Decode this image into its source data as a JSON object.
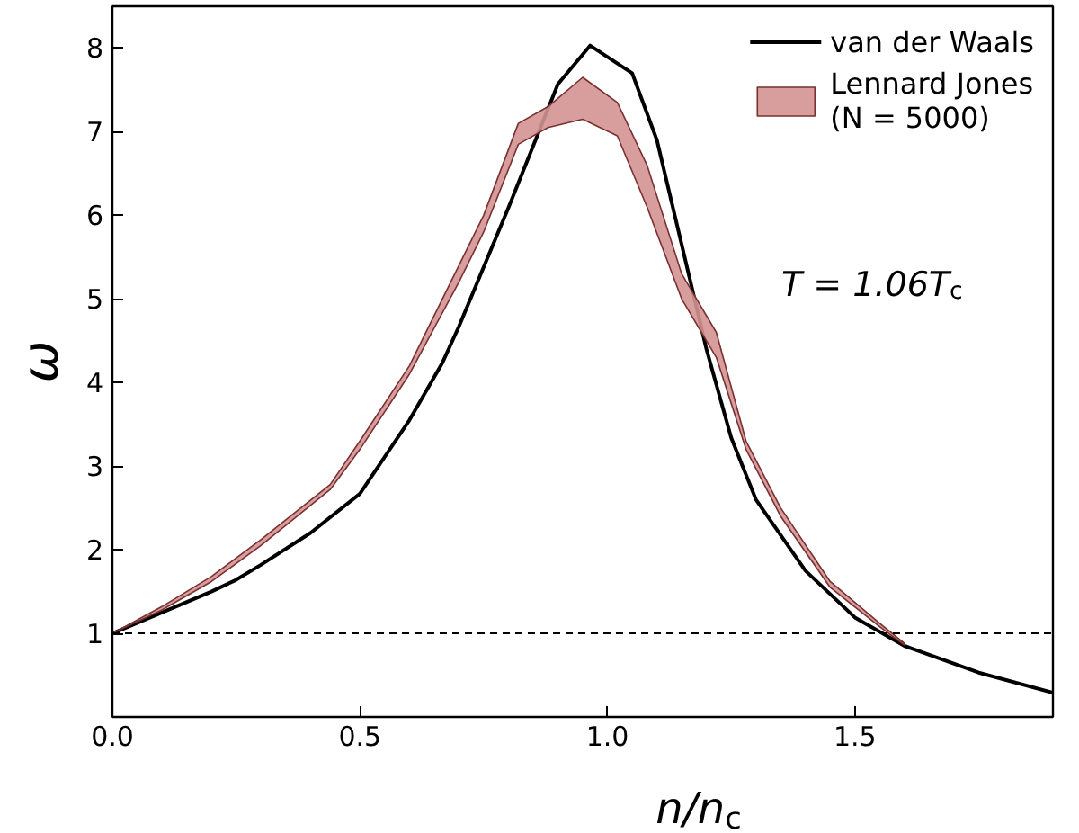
{
  "chart_data": {
    "type": "line",
    "xlabel": "n/n$_{c}$",
    "ylabel": "ω",
    "xlim": [
      0,
      1.9
    ],
    "ylim": [
      0,
      8.5
    ],
    "xticks": [
      {
        "value": 0,
        "label": "0.0"
      },
      0.5,
      {
        "value": 1,
        "label": "1.0"
      },
      1.5
    ],
    "yticks": [
      1,
      2,
      3,
      4,
      5,
      6,
      7,
      8
    ],
    "series": [
      {
        "name": "van der Waals",
        "color": "#000000",
        "x": [
          0,
          0.1,
          0.2,
          0.25,
          0.3,
          0.4,
          0.5,
          0.6,
          0.667,
          0.7,
          0.8,
          0.9,
          0.965,
          1.05,
          1.1,
          1.2,
          1.25,
          1.3,
          1.4,
          1.5,
          1.6,
          1.75,
          1.9
        ],
        "values": [
          1,
          1.25,
          1.5,
          1.64,
          1.82,
          2.2,
          2.67,
          3.55,
          4.24,
          4.67,
          6.09,
          7.57,
          8.03,
          7.7,
          6.9,
          4.4,
          3.34,
          2.6,
          1.75,
          1.19,
          0.85,
          0.53,
          0.29
        ]
      },
      {
        "name": "Lennard Jones (N = 5000)",
        "type": "area",
        "color": "#d49494",
        "x": [
          0,
          0.1,
          0.2,
          0.3,
          0.44,
          0.5,
          0.6,
          0.7,
          0.75,
          0.82,
          0.88,
          0.95,
          1.02,
          1.08,
          1.15,
          1.22,
          1.28,
          1.35,
          1.45,
          1.55,
          1.6
        ],
        "values": [
          null,
          null,
          null,
          null,
          null,
          null,
          null,
          null,
          null,
          null,
          null,
          null,
          null,
          null,
          null,
          null,
          null,
          null,
          null,
          null,
          null
        ],
        "lower": [
          1,
          1.28,
          1.62,
          2.05,
          2.72,
          3.2,
          4.1,
          5.2,
          5.8,
          6.85,
          7.05,
          7.15,
          6.95,
          6.1,
          5.0,
          4.3,
          3.2,
          2.4,
          1.55,
          1.08,
          0.86
        ],
        "upper": [
          1,
          1.32,
          1.68,
          2.12,
          2.78,
          3.3,
          4.2,
          5.4,
          6.0,
          7.1,
          7.3,
          7.65,
          7.35,
          6.6,
          5.3,
          4.6,
          3.3,
          2.5,
          1.62,
          1.12,
          0.88
        ]
      }
    ],
    "ref_lines": [
      {
        "axis": "y",
        "value": 1,
        "color": "#000000",
        "line_style": "dashed"
      }
    ],
    "annotations": [
      "T = 1.06T$_{c}$"
    ],
    "legend": "top right",
    "grid": false,
    "line_style": "solid"
  }
}
